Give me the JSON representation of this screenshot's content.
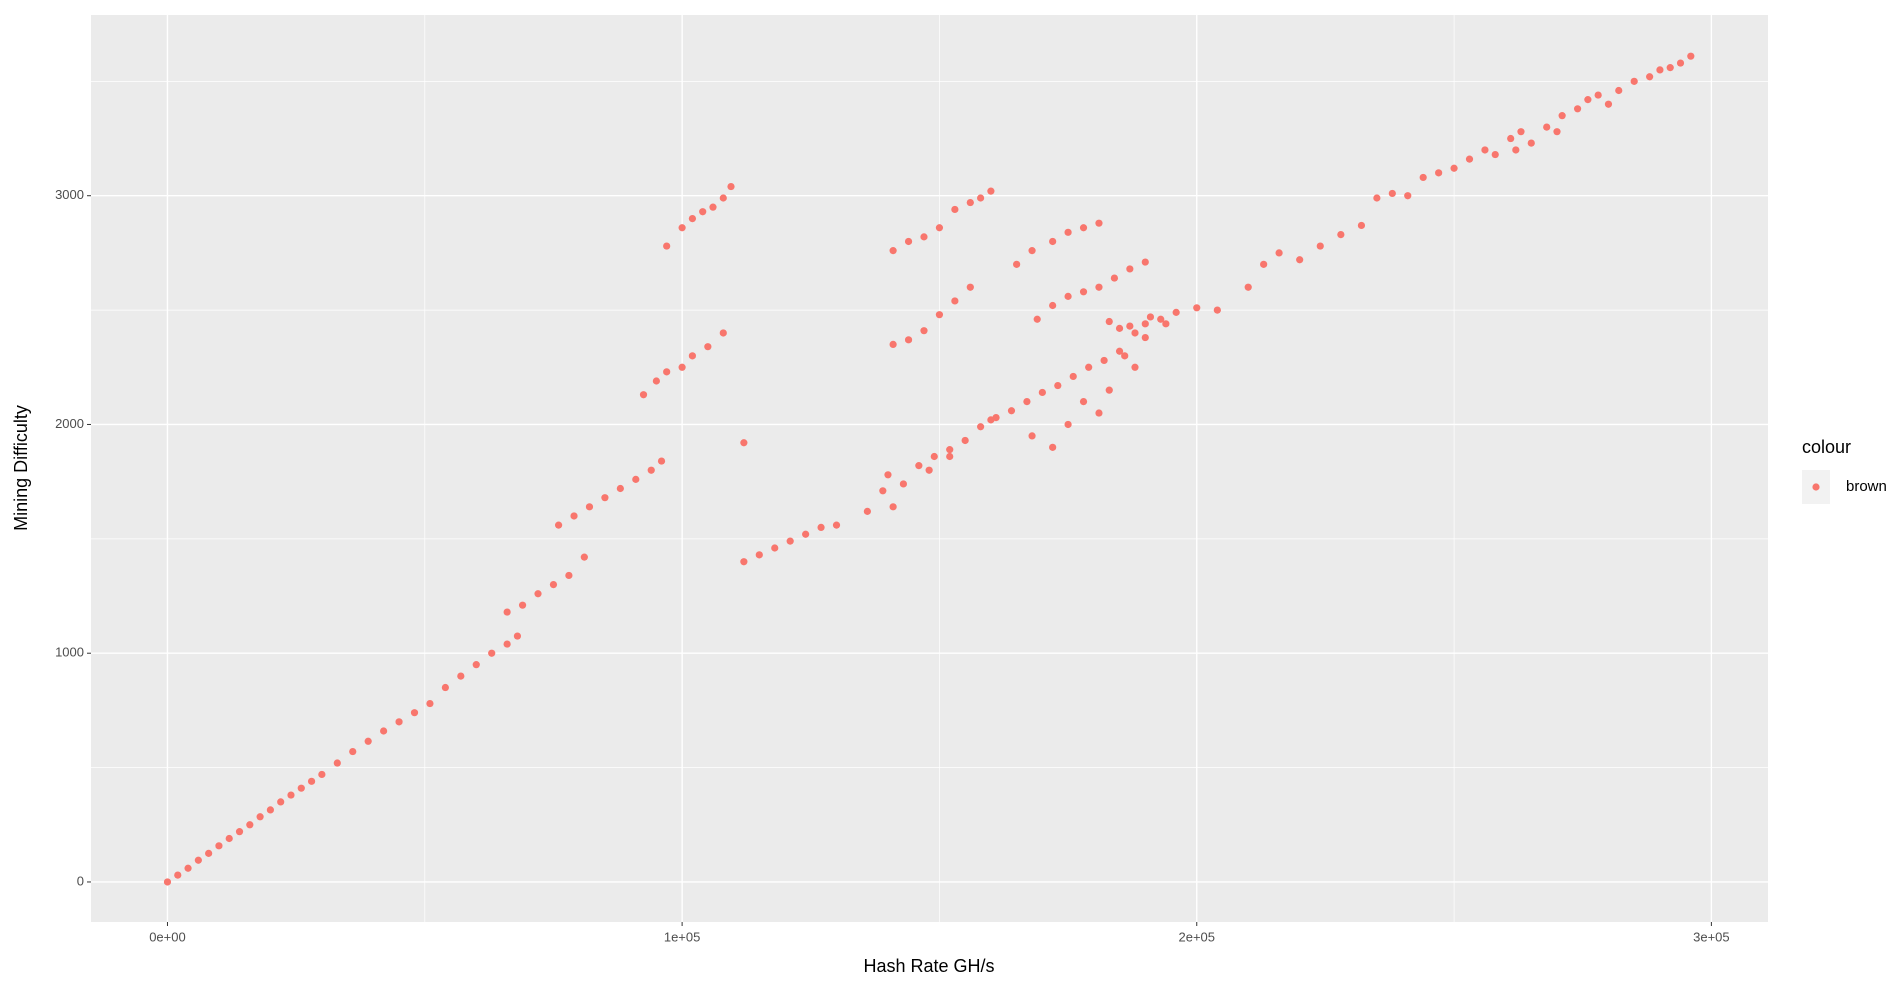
{
  "chart_data": {
    "type": "scatter",
    "x_label": "Hash Rate GH/s",
    "y_label": "Mining Difficulty",
    "legend_title": "colour",
    "legend_position": "right",
    "grid": true,
    "background": "#ebebeb",
    "xlim": [
      -14860,
      311000
    ],
    "ylim": [
      -175,
      3790
    ],
    "xticks": [
      {
        "value": 0,
        "label": "0e+00"
      },
      {
        "value": 100000,
        "label": "1e+05"
      },
      {
        "value": 200000,
        "label": "2e+05"
      },
      {
        "value": 300000,
        "label": "3e+05"
      }
    ],
    "yticks": [
      0,
      1000,
      2000,
      3000
    ],
    "x": [
      0,
      2000,
      4000,
      6000,
      8000,
      10000,
      12000,
      14000,
      16000,
      18000,
      20000,
      22000,
      24000,
      26000,
      28000,
      30000,
      33000,
      36000,
      39000,
      42000,
      45000,
      48000,
      51000,
      54000,
      57000,
      60000,
      63000,
      66000,
      68000,
      66000,
      69000,
      72000,
      75000,
      78000,
      81000,
      76000,
      79000,
      82000,
      85000,
      88000,
      91000,
      94000,
      96000,
      92500,
      95000,
      97000,
      100000,
      102000,
      105000,
      108000,
      97000,
      100000,
      102000,
      104000,
      106000,
      108000,
      109500,
      112000,
      112000,
      115000,
      118000,
      121000,
      124000,
      127000,
      130000,
      136000,
      139000,
      141000,
      140000,
      143000,
      146000,
      149000,
      152000,
      155000,
      158000,
      161000,
      164000,
      167000,
      170000,
      173000,
      176000,
      179000,
      182000,
      185000,
      188000,
      190000,
      193000,
      196000,
      200000,
      204000,
      148000,
      152000,
      160000,
      178000,
      181000,
      183000,
      186000,
      188000,
      190000,
      185000,
      183000,
      187000,
      191000,
      194000,
      172000,
      168000,
      175000,
      141000,
      144000,
      147000,
      150000,
      153000,
      156000,
      141000,
      144000,
      147000,
      150000,
      153000,
      156000,
      158000,
      160000,
      165000,
      168000,
      172000,
      175000,
      178000,
      181000,
      169000,
      172000,
      175000,
      178000,
      181000,
      184000,
      187000,
      190000,
      210000,
      213000,
      216000,
      220000,
      224000,
      228000,
      232000,
      235000,
      238000,
      241000,
      244000,
      247000,
      250000,
      253000,
      256000,
      258000,
      261000,
      263000,
      265000,
      268000,
      271000,
      274000,
      276000,
      278000,
      280000,
      282000,
      285000,
      288000,
      290000,
      292000,
      294000,
      296000,
      270000,
      262000
    ],
    "series": [
      {
        "name": "brown",
        "color": "#F8766D",
        "values": [
          0,
          30,
          60,
          95,
          125,
          158,
          190,
          220,
          250,
          285,
          315,
          350,
          380,
          410,
          440,
          470,
          520,
          570,
          615,
          660,
          700,
          740,
          780,
          850,
          900,
          950,
          1000,
          1040,
          1075,
          1180,
          1210,
          1260,
          1300,
          1340,
          1420,
          1560,
          1600,
          1640,
          1680,
          1720,
          1760,
          1800,
          1840,
          2130,
          2190,
          2230,
          2250,
          2300,
          2340,
          2400,
          2780,
          2860,
          2900,
          2930,
          2950,
          2990,
          3040,
          1920,
          1400,
          1430,
          1460,
          1490,
          1520,
          1550,
          1560,
          1620,
          1710,
          1640,
          1780,
          1740,
          1820,
          1860,
          1890,
          1930,
          1990,
          2030,
          2060,
          2100,
          2140,
          2170,
          2210,
          2250,
          2280,
          2320,
          2400,
          2440,
          2460,
          2490,
          2510,
          2500,
          1800,
          1860,
          2020,
          2100,
          2050,
          2150,
          2300,
          2250,
          2380,
          2420,
          2450,
          2430,
          2470,
          2440,
          1900,
          1950,
          2000,
          2350,
          2370,
          2410,
          2480,
          2540,
          2600,
          2760,
          2800,
          2820,
          2860,
          2940,
          2970,
          2990,
          3020,
          2700,
          2760,
          2800,
          2840,
          2860,
          2880,
          2460,
          2520,
          2560,
          2580,
          2600,
          2640,
          2680,
          2710,
          2600,
          2700,
          2750,
          2720,
          2780,
          2830,
          2870,
          2990,
          3010,
          3000,
          3080,
          3100,
          3120,
          3160,
          3200,
          3180,
          3250,
          3280,
          3230,
          3300,
          3350,
          3380,
          3420,
          3440,
          3400,
          3460,
          3500,
          3520,
          3550,
          3560,
          3580,
          3610,
          3280,
          3200
        ]
      }
    ]
  }
}
